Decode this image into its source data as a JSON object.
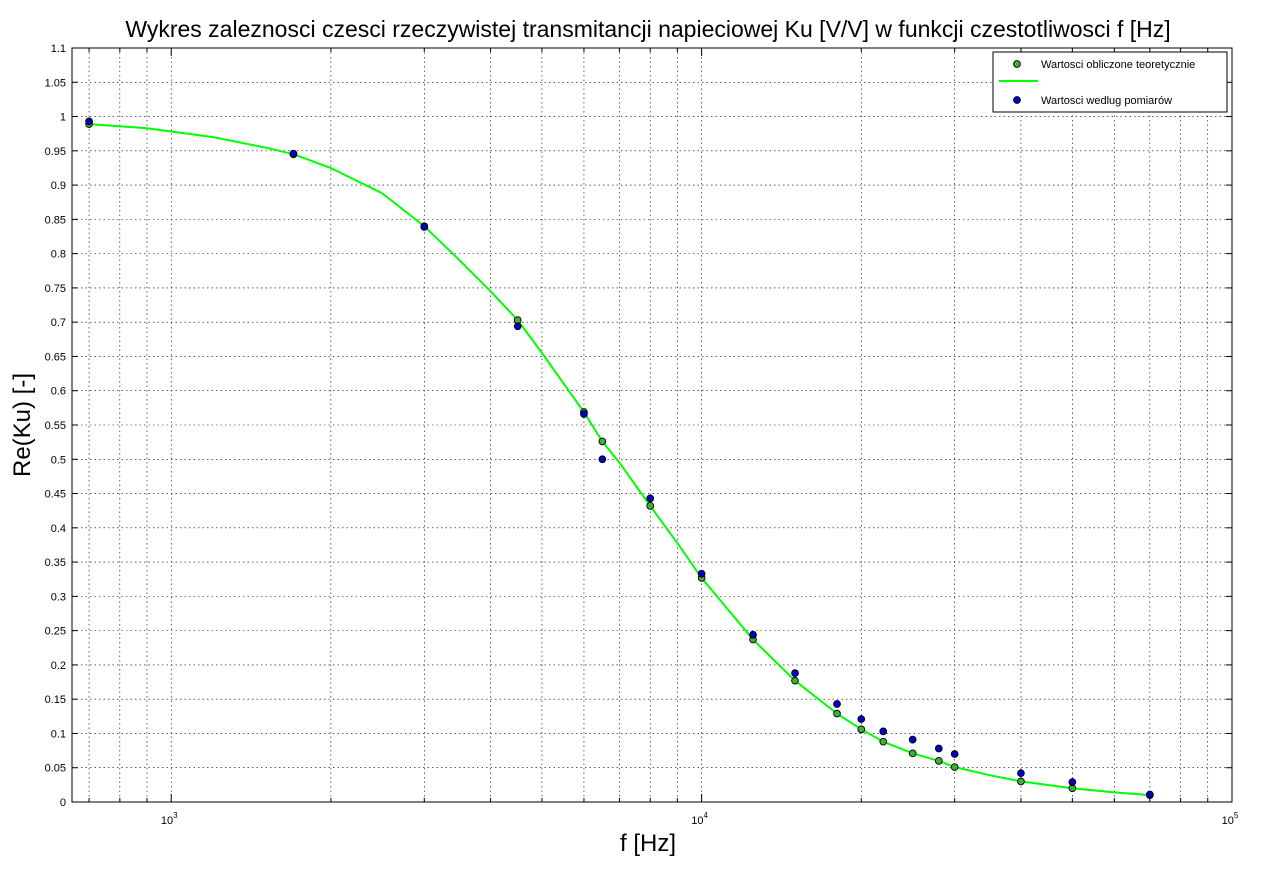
{
  "chart_data": {
    "type": "scatter",
    "title": "Wykres zaleznosci czesci rzeczywistej transmitancji napieciowej Ku [V/V] w funkcji czestotliwosci f [Hz]",
    "xlabel": "f [Hz]",
    "ylabel": "Re(Ku) [-]",
    "x_scale": "log",
    "xlim": [
      650,
      100000
    ],
    "ylim": [
      0,
      1.1
    ],
    "grid": true,
    "legend_position": "top-right",
    "x_ticks": [
      {
        "value": 1000,
        "base": "10",
        "exp": "3"
      },
      {
        "value": 10000,
        "base": "10",
        "exp": "4"
      },
      {
        "value": 100000,
        "base": "10",
        "exp": "5"
      }
    ],
    "y_ticks": [
      {
        "value": 0,
        "label": "0"
      },
      {
        "value": 0.05,
        "label": "0.05"
      },
      {
        "value": 0.1,
        "label": "0.1"
      },
      {
        "value": 0.15,
        "label": "0.15"
      },
      {
        "value": 0.2,
        "label": "0.2"
      },
      {
        "value": 0.25,
        "label": "0.25"
      },
      {
        "value": 0.3,
        "label": "0.3"
      },
      {
        "value": 0.35,
        "label": "0.35"
      },
      {
        "value": 0.4,
        "label": "0.4"
      },
      {
        "value": 0.45,
        "label": "0.45"
      },
      {
        "value": 0.5,
        "label": "0.5"
      },
      {
        "value": 0.55,
        "label": "0.55"
      },
      {
        "value": 0.6,
        "label": "0.6"
      },
      {
        "value": 0.65,
        "label": "0.65"
      },
      {
        "value": 0.7,
        "label": "0.7"
      },
      {
        "value": 0.75,
        "label": "0.75"
      },
      {
        "value": 0.8,
        "label": "0.8"
      },
      {
        "value": 0.85,
        "label": "0.85"
      },
      {
        "value": 0.9,
        "label": "0.9"
      },
      {
        "value": 0.95,
        "label": "0.95"
      },
      {
        "value": 1,
        "label": "1"
      },
      {
        "value": 1.05,
        "label": "1.05"
      },
      {
        "value": 1.1,
        "label": "1.1"
      }
    ],
    "series": [
      {
        "name": "Wartosci obliczone teoretycznie",
        "style": "marker",
        "marker_fill": "#3fae3f",
        "marker_edge": "#000000",
        "x": [
          700,
          1700,
          3000,
          4500,
          6000,
          6500,
          8000,
          10000,
          12500,
          15000,
          18000,
          20000,
          22000,
          25000,
          28000,
          30000,
          40000,
          50000,
          70000
        ],
        "y": [
          0.989,
          0.945,
          0.84,
          0.703,
          0.569,
          0.526,
          0.432,
          0.327,
          0.237,
          0.177,
          0.129,
          0.106,
          0.088,
          0.071,
          0.06,
          0.051,
          0.03,
          0.02,
          0.01
        ]
      },
      {
        "name": "",
        "style": "line",
        "color": "#00ff00",
        "x": [
          700,
          900,
          1200,
          1500,
          1700,
          2000,
          2500,
          3000,
          3500,
          4000,
          4500,
          5000,
          5500,
          6000,
          6500,
          7000,
          8000,
          9000,
          10000,
          12500,
          15000,
          18000,
          20000,
          22000,
          25000,
          28000,
          30000,
          35000,
          40000,
          50000,
          60000,
          70000
        ],
        "y": [
          0.989,
          0.983,
          0.97,
          0.955,
          0.945,
          0.925,
          0.888,
          0.84,
          0.79,
          0.745,
          0.703,
          0.655,
          0.61,
          0.569,
          0.526,
          0.495,
          0.432,
          0.378,
          0.327,
          0.237,
          0.177,
          0.129,
          0.106,
          0.088,
          0.071,
          0.06,
          0.051,
          0.039,
          0.03,
          0.02,
          0.014,
          0.01
        ]
      },
      {
        "name": "Wartosci wedlug pomiarów",
        "style": "marker",
        "marker_fill": "#0000cc",
        "marker_edge": "#000000",
        "x": [
          700,
          1700,
          3000,
          4500,
          6000,
          6500,
          8000,
          10000,
          12500,
          15000,
          18000,
          20000,
          22000,
          25000,
          28000,
          30000,
          40000,
          50000,
          70000
        ],
        "y": [
          0.993,
          0.946,
          0.839,
          0.694,
          0.566,
          0.5,
          0.443,
          0.333,
          0.244,
          0.188,
          0.143,
          0.121,
          0.103,
          0.091,
          0.078,
          0.07,
          0.042,
          0.029,
          0.011
        ]
      }
    ]
  }
}
